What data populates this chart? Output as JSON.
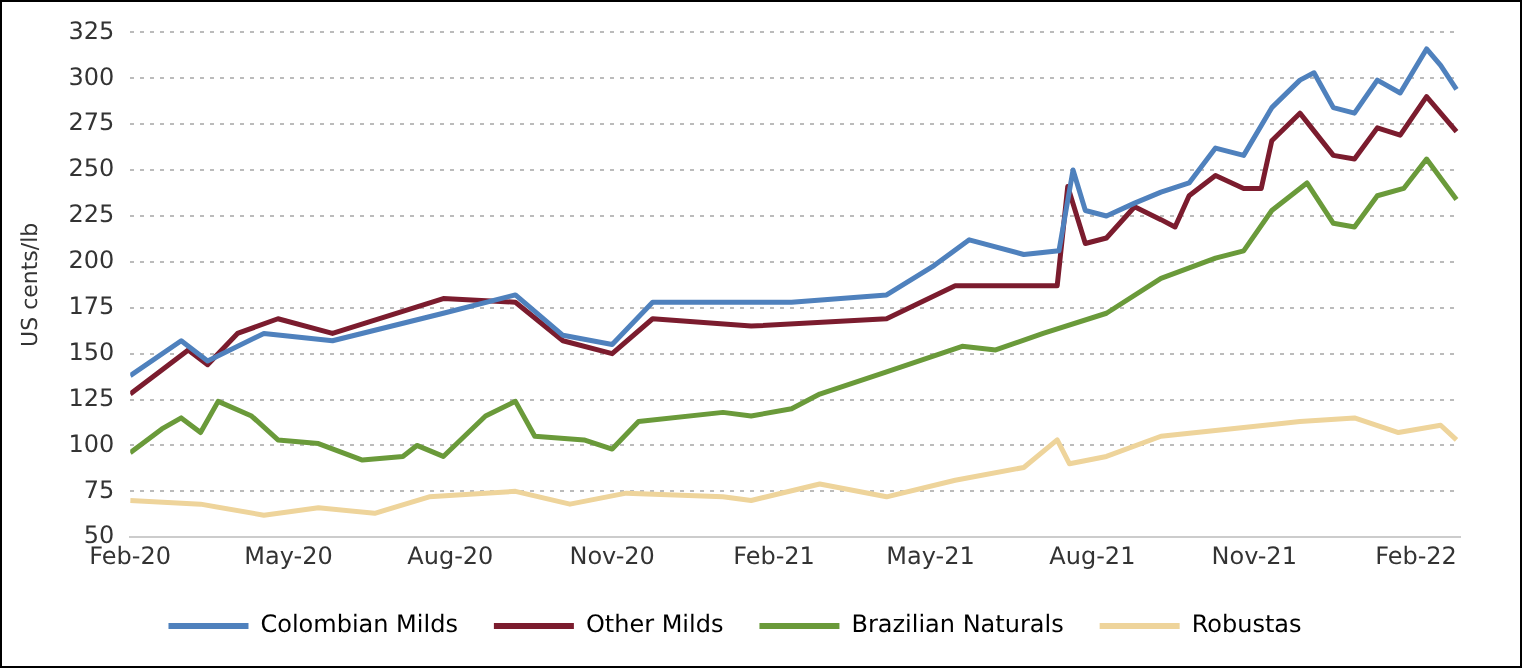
{
  "chart_data": {
    "type": "line",
    "ylabel": "US cents/lb",
    "xlim": [
      "2020-02-01",
      "2022-02-26"
    ],
    "xticks": [
      {
        "value": "2020-02-01",
        "label": "Feb-20"
      },
      {
        "value": "2020-05-01",
        "label": "May-20"
      },
      {
        "value": "2020-08-01",
        "label": "Aug-20"
      },
      {
        "value": "2020-11-01",
        "label": "Nov-20"
      },
      {
        "value": "2021-02-01",
        "label": "Feb-21"
      },
      {
        "value": "2021-05-01",
        "label": "May-21"
      },
      {
        "value": "2021-08-01",
        "label": "Aug-21"
      },
      {
        "value": "2021-11-01",
        "label": "Nov-21"
      },
      {
        "value": "2022-02-01",
        "label": "Feb-22"
      }
    ],
    "ylim": [
      50,
      325
    ],
    "yticks": [
      50,
      75,
      100,
      125,
      150,
      175,
      200,
      225,
      250,
      275,
      300,
      325
    ],
    "grid": "y",
    "legend": "bottom",
    "marker": "none",
    "line_style": "solid",
    "series": [
      {
        "name": "Colombian Milds",
        "color": "#4f81bd",
        "x": [
          "2020-02-01",
          "2020-03-01",
          "2020-03-16",
          "2020-04-17",
          "2020-05-26",
          "2020-07-28",
          "2020-09-07",
          "2020-10-04",
          "2020-11-01",
          "2020-11-24",
          "2021-01-03",
          "2021-02-11",
          "2021-04-06",
          "2021-05-03",
          "2021-05-23",
          "2021-06-23",
          "2021-07-13",
          "2021-07-21",
          "2021-07-28",
          "2021-08-09",
          "2021-08-25",
          "2021-09-09",
          "2021-09-25",
          "2021-10-10",
          "2021-10-26",
          "2021-11-11",
          "2021-11-27",
          "2021-12-05",
          "2021-12-16",
          "2021-12-28",
          "2022-01-10",
          "2022-01-23",
          "2022-02-07",
          "2022-02-15",
          "2022-02-24"
        ],
        "values": [
          138,
          157,
          146,
          161,
          157,
          172,
          182,
          160,
          155,
          178,
          178,
          178,
          182,
          198,
          212,
          204,
          206,
          250,
          228,
          225,
          232,
          238,
          243,
          262,
          258,
          284,
          299,
          303,
          284,
          281,
          299,
          292,
          316,
          307,
          294
        ]
      },
      {
        "name": "Other Milds",
        "color": "#7b1c2e",
        "x": [
          "2020-02-01",
          "2020-03-05",
          "2020-03-16",
          "2020-04-02",
          "2020-04-25",
          "2020-05-26",
          "2020-07-28",
          "2020-09-07",
          "2020-10-04",
          "2020-11-01",
          "2020-11-24",
          "2021-01-19",
          "2021-04-06",
          "2021-05-15",
          "2021-07-12",
          "2021-07-18",
          "2021-07-28",
          "2021-08-09",
          "2021-08-25",
          "2021-09-09",
          "2021-09-17",
          "2021-09-25",
          "2021-10-10",
          "2021-10-26",
          "2021-11-05",
          "2021-11-11",
          "2021-11-27",
          "2021-12-16",
          "2021-12-28",
          "2022-01-10",
          "2022-01-23",
          "2022-02-07",
          "2022-02-24"
        ],
        "values": [
          128,
          152,
          144,
          161,
          169,
          161,
          180,
          178,
          157,
          150,
          169,
          165,
          169,
          187,
          187,
          241,
          210,
          213,
          230,
          223,
          219,
          236,
          247,
          240,
          240,
          266,
          281,
          258,
          256,
          273,
          269,
          290,
          271
        ]
      },
      {
        "name": "Brazilian Naturals",
        "color": "#6a9a3a",
        "x": [
          "2020-02-01",
          "2020-02-19",
          "2020-03-01",
          "2020-03-12",
          "2020-03-22",
          "2020-04-10",
          "2020-04-25",
          "2020-05-18",
          "2020-06-12",
          "2020-07-05",
          "2020-07-13",
          "2020-07-28",
          "2020-08-21",
          "2020-09-07",
          "2020-09-18",
          "2020-10-16",
          "2020-11-01",
          "2020-11-16",
          "2021-01-03",
          "2021-01-19",
          "2021-02-11",
          "2021-02-27",
          "2021-04-06",
          "2021-05-19",
          "2021-06-07",
          "2021-07-04",
          "2021-08-09",
          "2021-09-09",
          "2021-10-10",
          "2021-10-26",
          "2021-11-11",
          "2021-12-01",
          "2021-12-16",
          "2021-12-28",
          "2022-01-10",
          "2022-01-25",
          "2022-02-07",
          "2022-02-24"
        ],
        "values": [
          96,
          109,
          115,
          107,
          124,
          116,
          103,
          101,
          92,
          94,
          100,
          94,
          116,
          124,
          105,
          103,
          98,
          113,
          118,
          116,
          120,
          128,
          140,
          154,
          152,
          161,
          172,
          191,
          202,
          206,
          228,
          243,
          221,
          219,
          236,
          240,
          256,
          234
        ]
      },
      {
        "name": "Robustas",
        "color": "#eed49b",
        "x": [
          "2020-02-01",
          "2020-03-12",
          "2020-04-17",
          "2020-05-18",
          "2020-06-19",
          "2020-07-20",
          "2020-09-07",
          "2020-10-08",
          "2020-11-09",
          "2021-01-03",
          "2021-01-19",
          "2021-02-27",
          "2021-04-06",
          "2021-05-15",
          "2021-06-23",
          "2021-07-12",
          "2021-07-19",
          "2021-08-09",
          "2021-09-09",
          "2021-10-18",
          "2021-11-27",
          "2021-12-28",
          "2022-01-22",
          "2022-02-15",
          "2022-02-24"
        ],
        "values": [
          70,
          68,
          62,
          66,
          63,
          72,
          75,
          68,
          74,
          72,
          70,
          79,
          72,
          81,
          88,
          103,
          90,
          94,
          105,
          109,
          113,
          115,
          107,
          111,
          103
        ]
      }
    ]
  }
}
